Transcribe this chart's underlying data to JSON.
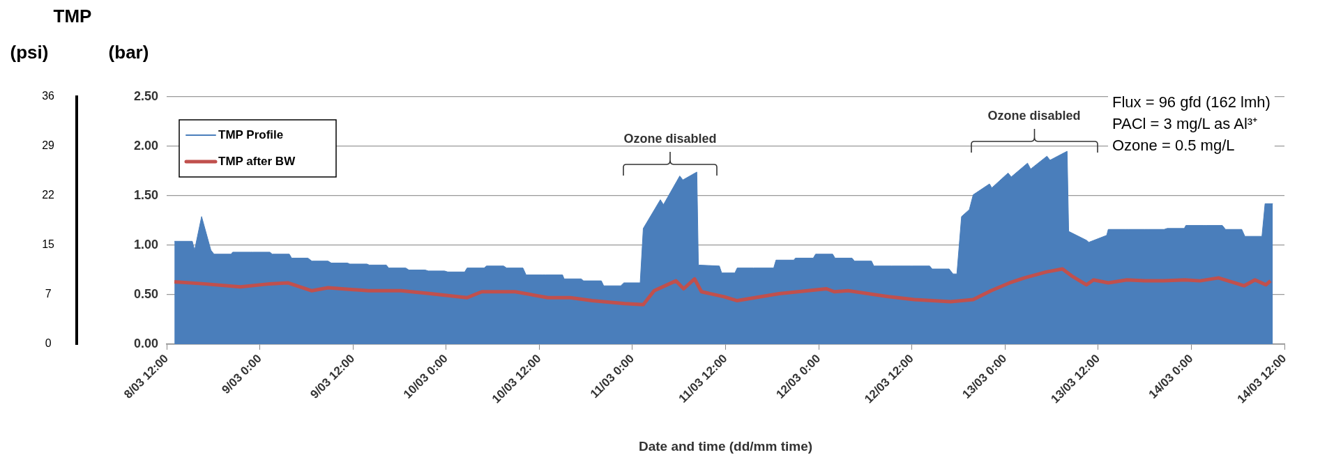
{
  "chart_data": {
    "type": "line",
    "title": "TMP",
    "ylabel": "(bar)",
    "y2label": "(psi)",
    "xlabel": "Date and time (dd/mm time)",
    "annotations": [
      "Ozone disabled",
      "Ozone disabled",
      "Flux = 96 gfd (162 lmh)",
      "PACl = 3 mg/L as Al³⁺",
      "Ozone = 0.5 mg/L"
    ],
    "series": [
      {
        "name": "TMP Profile",
        "type": "area",
        "color": "#4a7ebb",
        "x": [
          "--03-08T13:00",
          "--03-08T15:18",
          "--03-08T15:36",
          "--03-08T16:30",
          "--03-08T17:42",
          "--03-08T18:06",
          "--03-08T20:18",
          "--03-08T20:30",
          "--03-08T22:48",
          "--03-08T23:06",
          "--03-09T01:18",
          "--03-09T01:36",
          "--03-09T03:48",
          "--03-09T04:06",
          "--03-09T06:12",
          "--03-09T06:42",
          "--03-09T08:48",
          "--03-09T09:12",
          "--03-09T11:18",
          "--03-09T11:36",
          "--03-09T13:48",
          "--03-09T14:06",
          "--03-09T16:18",
          "--03-09T16:36",
          "--03-09T18:48",
          "--03-09T19:12",
          "--03-09T21:18",
          "--03-09T21:42",
          "--03-09T23:48",
          "--03-10T00:12",
          "--03-10T02:24",
          "--03-10T02:42",
          "--03-10T04:54",
          "--03-10T05:12",
          "--03-10T07:24",
          "--03-10T07:48",
          "--03-10T09:54",
          "--03-10T10:18",
          "--03-10T12:24",
          "--03-10T12:48",
          "--03-10T15:00",
          "--03-10T15:12",
          "--03-10T17:24",
          "--03-10T17:42",
          "--03-10T20:00",
          "--03-10T20:18",
          "--03-10T22:30",
          "--03-10T22:54",
          "--03-11T01:00",
          "--03-11T01:24",
          "--03-11T03:36",
          "--03-11T04:00",
          "--03-11T06:06",
          "--03-11T06:30",
          "--03-11T08:18",
          "--03-11T08:30",
          "--03-11T11:12",
          "--03-11T11:30",
          "--03-11T13:12",
          "--03-11T13:30",
          "--03-11T15:36",
          "--03-11T16:00",
          "--03-11T18:12",
          "--03-11T18:30",
          "--03-11T20:48",
          "--03-11T21:00",
          "--03-11T23:18",
          "--03-11T23:36",
          "--03-12T01:48",
          "--03-12T02:06",
          "--03-12T04:18",
          "--03-12T04:36",
          "--03-12T06:48",
          "--03-12T07:06",
          "--03-12T09:24",
          "--03-12T09:36",
          "--03-12T11:54",
          "--03-12T12:06",
          "--03-12T14:18",
          "--03-12T14:36",
          "--03-12T16:48",
          "--03-12T17:18",
          "--03-12T17:48",
          "--03-12T18:24",
          "--03-12T19:24",
          "--03-12T19:54",
          "--03-12T22:00",
          "--03-12T22:18",
          "--03-13T00:24",
          "--03-13T00:48",
          "--03-13T02:54",
          "--03-13T03:18",
          "--03-13T05:24",
          "--03-13T05:48",
          "--03-13T08:00",
          "--03-13T08:12",
          "--03-13T10:30",
          "--03-13T10:48",
          "--03-13T13:06",
          "--03-13T13:18",
          "--03-13T15:30",
          "--03-13T15:54",
          "--03-13T18:00",
          "--03-13T18:24",
          "--03-13T20:30",
          "--03-13T20:54",
          "--03-13T23:06",
          "--03-13T23:18",
          "--03-14T01:36",
          "--03-14T01:54",
          "--03-14T04:00",
          "--03-14T04:24",
          "--03-14T06:30",
          "--03-14T06:54",
          "--03-14T09:06",
          "--03-14T09:30",
          "--03-14T10:30"
        ],
        "values": [
          1.04,
          1.04,
          0.95,
          1.29,
          0.95,
          0.91,
          0.91,
          0.93,
          0.93,
          0.93,
          0.93,
          0.91,
          0.91,
          0.87,
          0.87,
          0.84,
          0.84,
          0.82,
          0.82,
          0.81,
          0.81,
          0.8,
          0.8,
          0.77,
          0.77,
          0.75,
          0.75,
          0.74,
          0.74,
          0.73,
          0.73,
          0.77,
          0.77,
          0.79,
          0.79,
          0.77,
          0.77,
          0.7,
          0.7,
          0.7,
          0.7,
          0.66,
          0.66,
          0.64,
          0.64,
          0.59,
          0.59,
          0.62,
          0.62,
          1.17,
          1.46,
          1.41,
          1.7,
          1.66,
          1.74,
          0.8,
          0.79,
          0.72,
          0.72,
          0.77,
          0.77,
          0.77,
          0.77,
          0.85,
          0.85,
          0.87,
          0.87,
          0.91,
          0.91,
          0.87,
          0.87,
          0.84,
          0.84,
          0.79,
          0.79,
          0.79,
          0.79,
          0.79,
          0.79,
          0.76,
          0.76,
          0.71,
          0.71,
          1.29,
          1.36,
          1.51,
          1.62,
          1.58,
          1.73,
          1.69,
          1.83,
          1.77,
          1.9,
          1.86,
          1.95,
          1.14,
          1.05,
          1.03,
          1.1,
          1.16,
          1.16,
          1.16,
          1.16,
          1.16,
          1.16,
          1.17,
          1.17,
          1.2,
          1.2,
          1.2,
          1.2,
          1.16,
          1.16,
          1.09,
          1.09,
          1.42,
          1.42
        ]
      },
      {
        "name": "TMP after BW",
        "type": "line",
        "color": "#c0504d",
        "x": [
          "--03-08T13:00",
          "--03-08T16:48",
          "--03-08T21:30",
          "--03-09T01:18",
          "--03-09T03:36",
          "--03-09T06:42",
          "--03-09T08:48",
          "--03-09T14:00",
          "--03-09T18:12",
          "--03-09T22:00",
          "--03-10T02:42",
          "--03-10T04:36",
          "--03-10T08:54",
          "--03-10T13:06",
          "--03-10T16:00",
          "--03-10T18:48",
          "--03-10T23:00",
          "--03-11T01:24",
          "--03-11T02:48",
          "--03-11T05:36",
          "--03-11T06:36",
          "--03-11T08:00",
          "--03-11T08:54",
          "--03-11T11:48",
          "--03-11T13:30",
          "--03-11T18:54",
          "--03-11T22:36",
          "--03-12T01:00",
          "--03-12T02:00",
          "--03-12T03:48",
          "--03-12T09:00",
          "--03-12T12:18",
          "--03-12T17:00",
          "--03-12T19:54",
          "--03-12T22:12",
          "--03-13T00:36",
          "--03-13T02:30",
          "--03-13T05:18",
          "--03-13T07:24",
          "--03-13T08:36",
          "--03-13T10:30",
          "--03-13T11:24",
          "--03-13T13:18",
          "--03-13T15:42",
          "--03-13T18:00",
          "--03-13T20:24",
          "--03-13T23:12",
          "--03-14T01:06",
          "--03-14T03:30",
          "--03-14T06:48",
          "--03-14T08:12",
          "--03-14T09:36",
          "--03-14T10:12"
        ],
        "values": [
          0.63,
          0.61,
          0.58,
          0.61,
          0.62,
          0.54,
          0.57,
          0.54,
          0.54,
          0.51,
          0.47,
          0.53,
          0.53,
          0.47,
          0.47,
          0.44,
          0.41,
          0.4,
          0.54,
          0.64,
          0.56,
          0.66,
          0.53,
          0.48,
          0.44,
          0.51,
          0.54,
          0.56,
          0.53,
          0.54,
          0.48,
          0.45,
          0.43,
          0.45,
          0.54,
          0.62,
          0.67,
          0.73,
          0.76,
          0.69,
          0.6,
          0.65,
          0.62,
          0.65,
          0.64,
          0.64,
          0.65,
          0.64,
          0.67,
          0.59,
          0.65,
          0.6,
          0.64
        ]
      }
    ],
    "xlim": [
      "--03-08T12:00",
      "--03-14T12:00"
    ],
    "xticks": [
      {
        "value": "--03-08T12:00",
        "label": "8/03 12:00"
      },
      {
        "value": "--03-09T00:00",
        "label": "9/03 0:00"
      },
      {
        "value": "--03-09T12:00",
        "label": "9/03 12:00"
      },
      {
        "value": "--03-10T00:00",
        "label": "10/03 0:00"
      },
      {
        "value": "--03-10T12:00",
        "label": "10/03 12:00"
      },
      {
        "value": "--03-11T00:00",
        "label": "11/03 0:00"
      },
      {
        "value": "--03-11T12:00",
        "label": "11/03 12:00"
      },
      {
        "value": "--03-12T00:00",
        "label": "12/03 0:00"
      },
      {
        "value": "--03-12T12:00",
        "label": "12/03 12:00"
      },
      {
        "value": "--03-13T00:00",
        "label": "13/03 0:00"
      },
      {
        "value": "--03-13T12:00",
        "label": "13/03 12:00"
      },
      {
        "value": "--03-14T00:00",
        "label": "14/03 0:00"
      },
      {
        "value": "--03-14T12:00",
        "label": "14/03 12:00"
      }
    ],
    "ylim": [
      0,
      2.5
    ],
    "yticks": [
      {
        "value": 0,
        "label": "0.00"
      },
      {
        "value": 0.5,
        "label": "0.50"
      },
      {
        "value": 1,
        "label": "1.00"
      },
      {
        "value": 1.5,
        "label": "1.50"
      },
      {
        "value": 2,
        "label": "2.00"
      },
      {
        "value": 2.5,
        "label": "2.50"
      }
    ],
    "y2lim": [
      0,
      36.26
    ],
    "y2ticks": [
      0,
      {
        "value": 7.25,
        "label": "7"
      },
      {
        "value": 14.5,
        "label": "15"
      },
      {
        "value": 21.76,
        "label": "22"
      },
      {
        "value": 29.01,
        "label": "29"
      },
      {
        "value": 36.26,
        "label": "36"
      }
    ],
    "grid": "y",
    "legend": "top left"
  }
}
